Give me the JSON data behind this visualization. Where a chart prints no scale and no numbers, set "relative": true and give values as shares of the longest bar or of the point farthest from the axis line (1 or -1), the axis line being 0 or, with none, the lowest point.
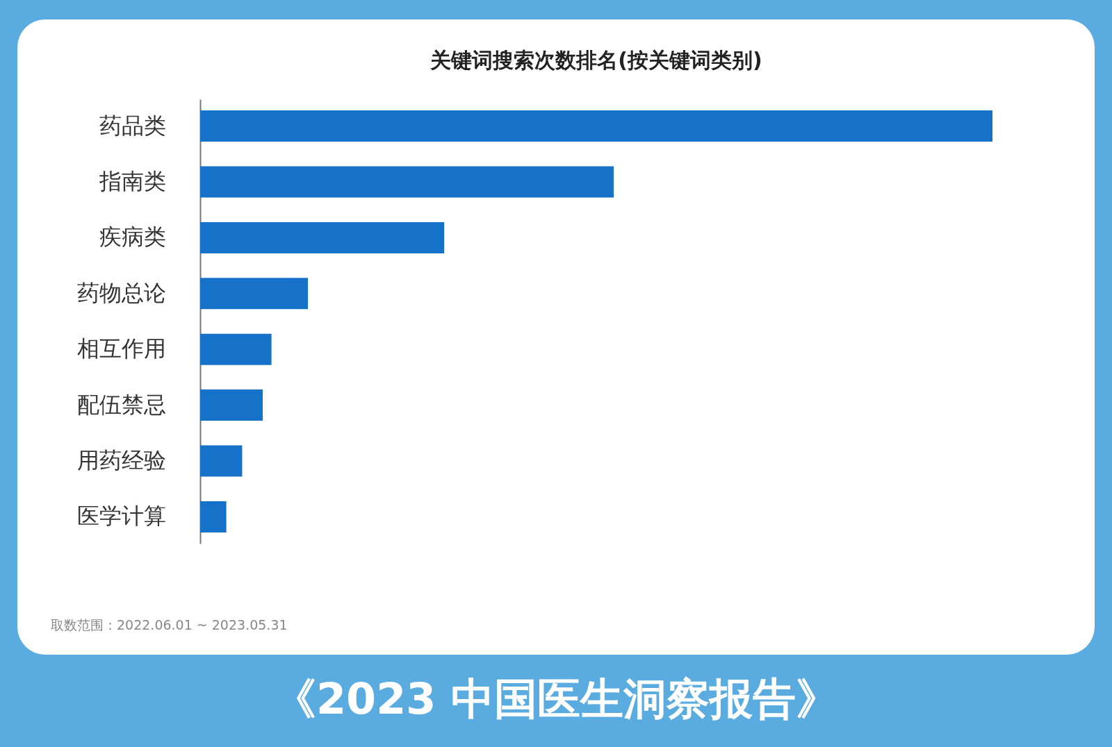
{
  "chart_data": {
    "type": "bar",
    "orientation": "horizontal",
    "relative": true,
    "title": "关键词搜索次数排名(按关键词类别)",
    "categories": [
      "药品类",
      "指南类",
      "疾病类",
      "药物总论",
      "相互作用",
      "配伍禁忌",
      "用药经验",
      "医学计算"
    ],
    "values": [
      1,
      0.522,
      0.308,
      0.136,
      0.09,
      0.079,
      0.053,
      0.033
    ],
    "color": "#1672c9",
    "annotations": [
      "取数范围：2022.06.01 ~ 2023.05.31",
      "《2023 中国医生洞察报告》"
    ]
  }
}
